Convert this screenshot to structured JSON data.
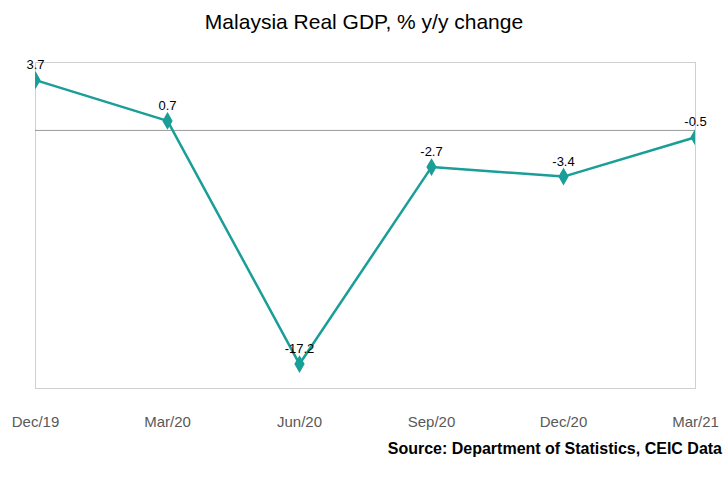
{
  "chart_data": {
    "type": "line",
    "title": "Malaysia Real GDP, % y/y change",
    "caption": "Source: Department of Statistics, CEIC Data",
    "categories": [
      "Dec/19",
      "Mar/20",
      "Jun/20",
      "Sep/20",
      "Dec/20",
      "Mar/21"
    ],
    "values": [
      3.7,
      0.7,
      -17.2,
      -2.7,
      -3.4,
      -0.5
    ],
    "color": "#1a9e98",
    "marker": "diamond",
    "ylim": [
      -19,
      5
    ],
    "yticks": [
      0
    ],
    "grid": true,
    "data_labels": true,
    "tick_labels": "x"
  }
}
